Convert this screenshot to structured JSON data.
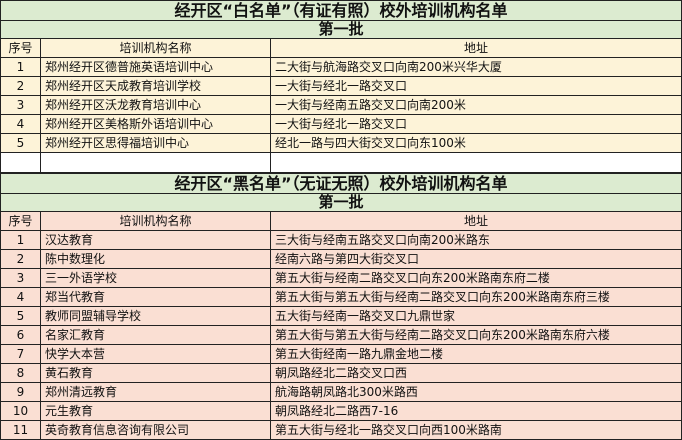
{
  "white_list": {
    "title": "经开区“白名单”（有证有照）校外培训机构名单",
    "batch": "第一批",
    "headers": [
      "序号",
      "培训机构名称",
      "地址"
    ],
    "rows": [
      [
        "1",
        "郑州经开区德普施英语培训中心",
        "二大街与航海路交叉口向南200米兴华大厦"
      ],
      [
        "2",
        "郑州经开区天成教育培训学校",
        "一大街与经北一路交叉口"
      ],
      [
        "3",
        "郑州经开区沃龙教育培训中心",
        "一大街与经南五路交叉口向南200米"
      ],
      [
        "4",
        "郑州经开区美格斯外语培训中心",
        "一大街与经北一路交叉口"
      ],
      [
        "5",
        "郑州经开区思得福培训中心",
        "经北一路与四大街交叉口向东100米"
      ]
    ]
  },
  "black_list": {
    "title": "经开区“黑名单”（无证无照）校外培训机构名单",
    "batch": "第一批",
    "headers": [
      "序号",
      "培训机构名称",
      "地址"
    ],
    "rows": [
      [
        "1",
        "汉达教育",
        "三大街与经南五路交叉口向南200米路东"
      ],
      [
        "2",
        "陈中数理化",
        "经南六路与第四大街交叉口"
      ],
      [
        "3",
        "三一外语学校",
        "第五大街与经南二路交叉口向东200米路南东府二楼"
      ],
      [
        "4",
        "郑当代教育",
        "第五大街与第五大街与经南二路交叉口向东200米路南东府三楼"
      ],
      [
        "5",
        "教师同盟辅导学校",
        "五大街与经南一路交叉口九鼎世家"
      ],
      [
        "6",
        "名家汇教育",
        "第五大街与第五大街与经南二路交叉口向东200米路南东府六楼"
      ],
      [
        "7",
        "快学大本营",
        "第五大街经南一路九鼎金地二楼"
      ],
      [
        "8",
        "黄石教育",
        "朝凤路经北二路交叉口西"
      ],
      [
        "9",
        "郑州清远教育",
        "航海路朝凤路北300米路西"
      ],
      [
        "10",
        "元生教育",
        "朝凤路经北二路西7-16"
      ],
      [
        "11",
        "英奇教育信息咨询有限公司",
        "第五大街与经北一路交叉口向西100米路南"
      ]
    ]
  },
  "colors": {
    "title_bg": "#dcebd0",
    "white_list_bg": "#fdf3d8",
    "black_list_bg": "#fadfd3"
  }
}
